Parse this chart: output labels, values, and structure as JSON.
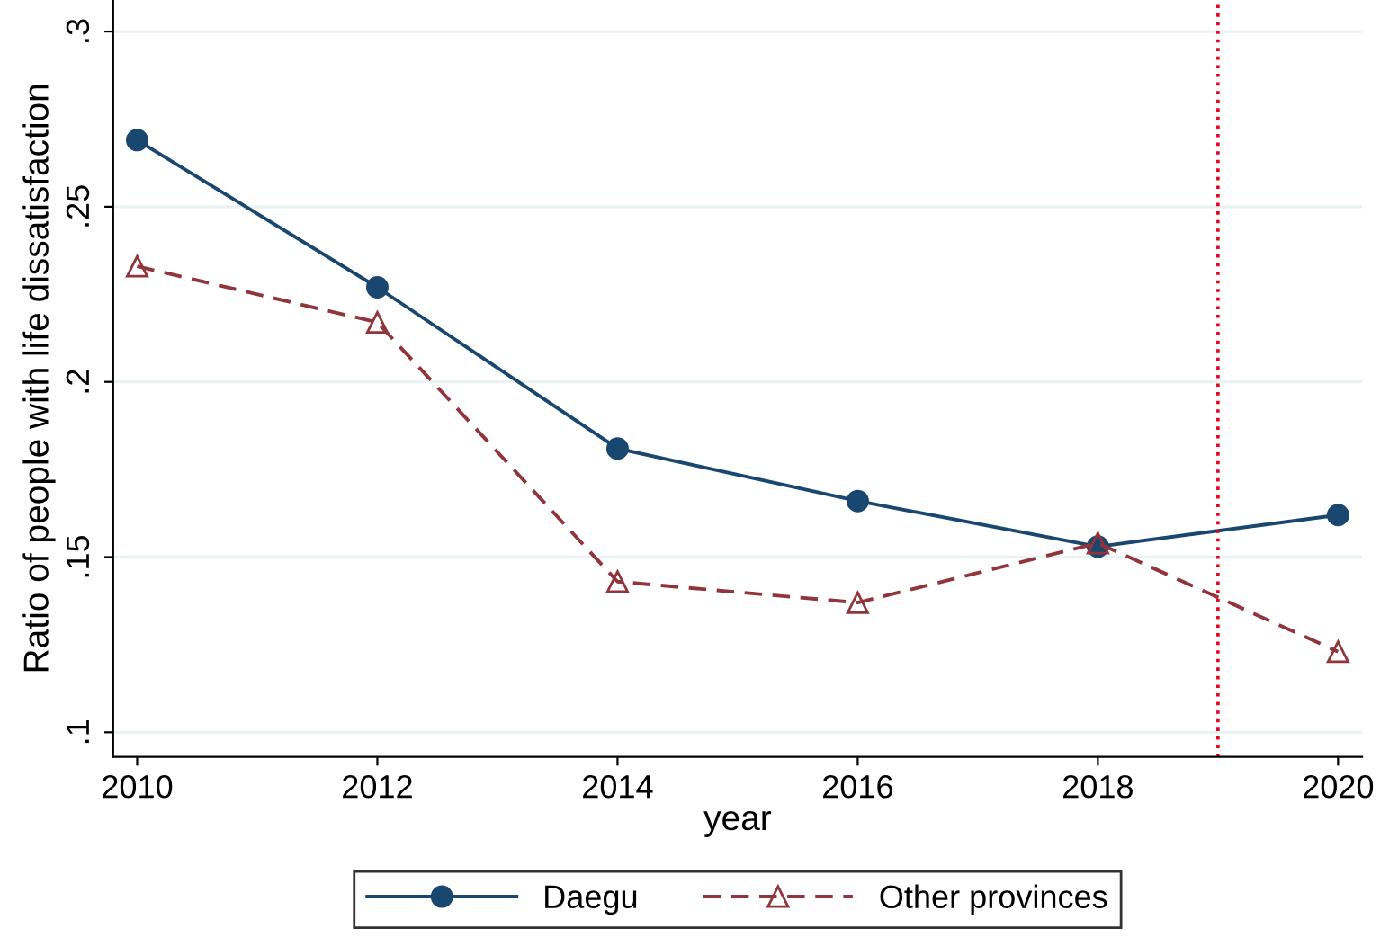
{
  "chart_data": {
    "type": "line",
    "xlabel": "year",
    "ylabel": "Ratio of people with life dissatisfaction",
    "x": [
      2010,
      2012,
      2014,
      2016,
      2018,
      2020
    ],
    "series": [
      {
        "name": "Daegu",
        "color": "#1a476f",
        "values": [
          0.269,
          0.227,
          0.181,
          0.166,
          0.153,
          0.162
        ],
        "marker": "circle",
        "line_style": "solid"
      },
      {
        "name": "Other provinces",
        "color": "#90353b",
        "values": [
          0.233,
          0.217,
          0.143,
          0.137,
          0.154,
          0.123
        ],
        "marker": "triangle",
        "line_style": "dashed"
      }
    ],
    "xlim": [
      2009.8,
      2020.2
    ],
    "ylim": [
      0.093,
      0.309
    ],
    "xticks": [
      2010,
      2012,
      2014,
      2016,
      2018,
      2020
    ],
    "yticks": [
      {
        "value": 0.1,
        "label": ".1"
      },
      {
        "value": 0.15,
        "label": ".15"
      },
      {
        "value": 0.2,
        "label": ".2"
      },
      {
        "value": 0.25,
        "label": ".25"
      },
      {
        "value": 0.3,
        "label": ".3"
      }
    ],
    "ref_lines": [
      {
        "axis": "x",
        "value": 2019,
        "color": "#e8001c",
        "line_style": "dotted"
      }
    ],
    "grid": "y",
    "legend": "bottom"
  }
}
